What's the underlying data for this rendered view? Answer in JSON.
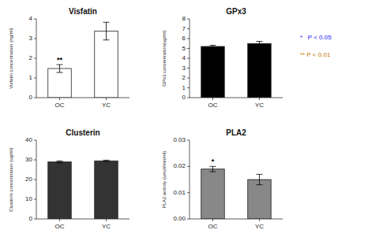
{
  "chart_data": [
    {
      "type": "bar",
      "title": "Visfatin",
      "y_label": "Visfatin concentration (ng/ml)",
      "categories": [
        "OC",
        "YC"
      ],
      "values": [
        1.48,
        3.38
      ],
      "errors": [
        0.2,
        0.45
      ],
      "ylim": [
        0,
        4
      ],
      "yticks": [
        0,
        1,
        2,
        3,
        4
      ],
      "color": "white",
      "grid": false,
      "annotations": [
        {
          "text": "**",
          "category": "OC"
        }
      ]
    },
    {
      "type": "bar",
      "title": "GPx3",
      "y_label": "GPx3 concentration(ug/ml)",
      "categories": [
        "OC",
        "YC"
      ],
      "values": [
        5.2,
        5.5
      ],
      "errors": [
        0.12,
        0.22
      ],
      "ylim": [
        0,
        8
      ],
      "yticks": [
        0,
        1,
        2,
        3,
        4,
        5,
        6,
        7,
        8
      ],
      "color": "black",
      "grid": false
    },
    {
      "type": "bar",
      "title": "Clusterin",
      "y_label": "Clusterin concentration (ug/ml)",
      "categories": [
        "OC",
        "YC"
      ],
      "values": [
        29.0,
        29.5
      ],
      "errors": [
        0.5,
        0.35
      ],
      "ylim": [
        0,
        40
      ],
      "yticks": [
        0,
        10,
        20,
        30,
        40
      ],
      "color": "#333333",
      "grid": false
    },
    {
      "type": "bar",
      "title": "PLA2",
      "y_label": "PLA2 activity (umol/min/ml)",
      "categories": [
        "OC",
        "YC"
      ],
      "values": [
        0.019,
        0.015
      ],
      "errors": [
        0.001,
        0.002
      ],
      "ylim": [
        0,
        0.03
      ],
      "yticks": [
        {
          "value": 0.0,
          "label": "0.00"
        },
        {
          "value": 0.01,
          "label": "0.01"
        },
        {
          "value": 0.02,
          "label": "0.02"
        },
        {
          "value": 0.03,
          "label": "0.03"
        }
      ],
      "color": "#888888",
      "grid": false,
      "annotations": [
        {
          "text": "*",
          "category": "OC"
        }
      ]
    }
  ],
  "annotations": [
    {
      "text": "*   P < 0.05",
      "color": "#1a1aff"
    },
    {
      "text": "** P < 0.01",
      "color": "#cc7700"
    }
  ]
}
